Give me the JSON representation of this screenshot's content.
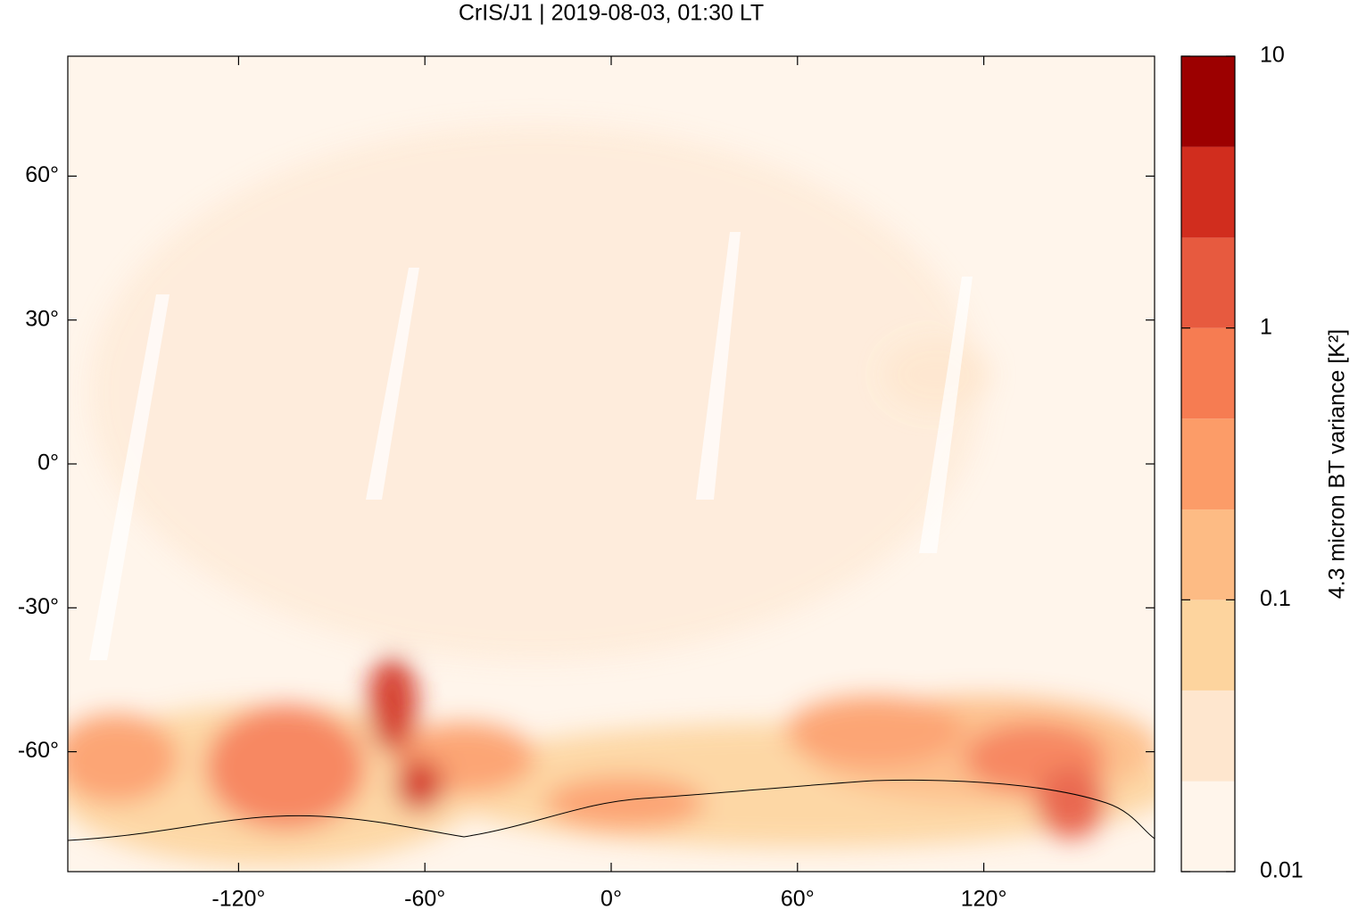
{
  "chart_data": {
    "type": "map",
    "title": "CrIS/J1 | 2019-08-03, 01:30 LT",
    "xlim": [
      -175,
      175
    ],
    "ylim": [
      -85,
      85
    ],
    "xticks": [
      {
        "value": -120,
        "label": "-120°"
      },
      {
        "value": -60,
        "label": "-60°"
      },
      {
        "value": 0,
        "label": "0°"
      },
      {
        "value": 60,
        "label": "60°"
      },
      {
        "value": 120,
        "label": "120°"
      }
    ],
    "yticks": [
      {
        "value": -60,
        "label": "-60°"
      },
      {
        "value": -30,
        "label": "-30°"
      },
      {
        "value": 0,
        "label": "0°"
      },
      {
        "value": 30,
        "label": "30°"
      },
      {
        "value": 60,
        "label": "60°"
      }
    ],
    "background": "#fff5eb",
    "colorbar": {
      "label": "4.3 micron BT variance [K²]",
      "log": true,
      "lim": [
        0.01,
        10
      ],
      "ticks": [
        0.01,
        0.1,
        1,
        10
      ],
      "levels": [
        0.01,
        0.0215,
        0.0464,
        0.1,
        0.215,
        0.464,
        1,
        2.15,
        4.64,
        10
      ],
      "colors": [
        "#fff5eb",
        "#fee6ce",
        "#fdd49e",
        "#fdbb84",
        "#fc9c68",
        "#f67c52",
        "#e75a3f",
        "#d12d1e",
        "#9c0000"
      ]
    }
  }
}
